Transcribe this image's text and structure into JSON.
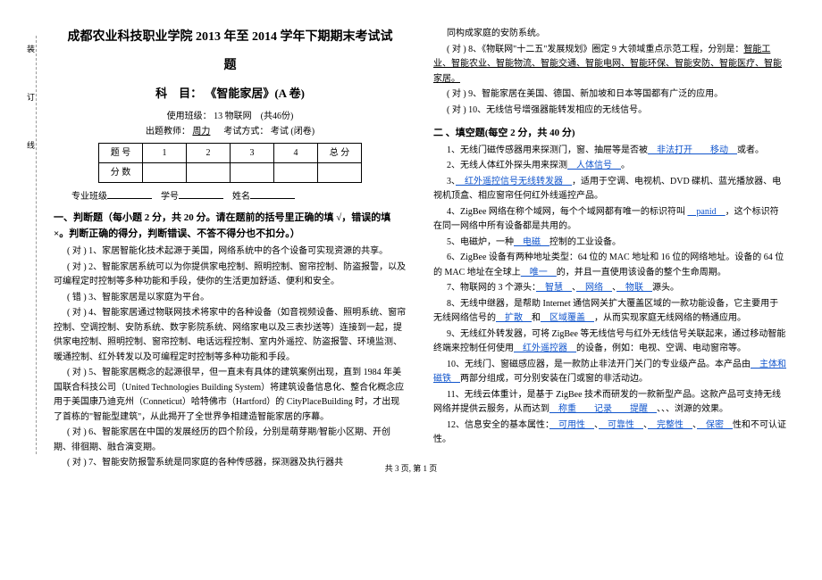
{
  "binding_label": "装　订　线",
  "header": {
    "title_line1": "成都农业科技职业学院 2013 年至 2014 学年下期期末考试试",
    "title_line2": "题",
    "subject_prefix": "科　目：",
    "subject": "《智能家居》(A 卷)",
    "class_label": "使用班级：",
    "class_value": "13 物联网",
    "points": "(共46份)",
    "teacher_label": "出题教师：",
    "teacher_value": "周力",
    "exam_type_label": "考试方式：",
    "exam_type_value": "考试 (闭卷)"
  },
  "score_table": {
    "row1": [
      "题 号",
      "1",
      "2",
      "3",
      "4",
      "总 分"
    ],
    "row2": [
      "分 数",
      "",
      "",
      "",
      "",
      ""
    ]
  },
  "info": {
    "class_label": "专业班级",
    "id_label": "学号",
    "name_label": "姓名"
  },
  "section1": {
    "header": "一、判断题（每小题 2 分，共 20 分。请在题前的括号里正确的填 √，错误的填 ×。判断正确的得分，判断错误、不答不得分也不扣分。）",
    "items": [
      {
        "mark": "( 对 )",
        "n": "1、",
        "text": "家居智能化技术起源于美国，网络系统中的各个设备可实现资源的共享。"
      },
      {
        "mark": "( 对 )",
        "n": "2、",
        "text": "智能家居系统可以为你提供家电控制、照明控制、窗帘控制、防盗报警，以及可编程定时控制等多种功能和手段，使你的生活更加舒适、便利和安全。"
      },
      {
        "mark": "( 错 )",
        "n": "3、",
        "text": "智能家居是以家庭为平台。"
      },
      {
        "mark": "( 对 )",
        "n": "4、",
        "text": "智能家居通过物联网技术将家中的各种设备（如音视频设备、照明系统、窗帘控制、空调控制、安防系统、数字影院系统、网络家电以及三表抄送等）连接到一起，提供家电控制、照明控制、窗帘控制、电话远程控制、室内外遥控、防盗报警、环境监测、暖通控制、红外转发以及可编程定时控制等多种功能和手段。"
      },
      {
        "mark": "( 对 )",
        "n": "5、",
        "text": "智能家居概念的起源很早，但一直未有具体的建筑案例出现，直到 1984 年美国联合科技公司（United Technologies Building System）将建筑设备信息化、整合化概念应用于美国康乃迪克州（Conneticut）哈特佛市（Hartford）的 CityPlaceBuilding 时，才出现了首栋的\"智能型建筑\"，从此揭开了全世界争相建造智能家居的序幕。"
      },
      {
        "mark": "( 对 )",
        "n": "6、",
        "text": "智能家居在中国的发展经历的四个阶段，分别是萌芽期/智能小区期、开创期、徘徊期、融合演变期。"
      },
      {
        "mark": "( 对 )",
        "n": "7、",
        "text": "智能安防报警系统是同家庭的各种传感器，探测器及执行器共"
      }
    ]
  },
  "section1_right": [
    {
      "mark": "",
      "text": "同构成家庭的安防系统。"
    },
    {
      "mark": "( 对 )",
      "n": "8、",
      "text": "《物联网\"十二五\"发展规划》圈定 9 大领域重点示范工程，分别是：",
      "u": "智能工业、智能农业、智能物流、智能交通、智能电网、智能环保、智能安防、智能医疗、智能家居。"
    },
    {
      "mark": "( 对 )",
      "n": "9、",
      "text": "智能家居在美国、德国、新加坡和日本等国都有广泛的应用。"
    },
    {
      "mark": "( 对 )",
      "n": "10、",
      "text": "无线信号增强器能转发相应的无线信号。"
    }
  ],
  "section2": {
    "header": "二 、填空题(每空 2 分，共 40 分)",
    "items": [
      {
        "n": "1、",
        "pre": "无线门磁传感器用来探测门，窗、抽屉等是否被",
        "a": "非法打开",
        "post": "或者",
        "a2": "移动",
        "post2": "。"
      },
      {
        "n": "2、",
        "pre": "无线人体红外探头用来探测",
        "a": "人体信号",
        "post": "。"
      },
      {
        "n": "3、",
        "a": "红外遥控信号无线转发器",
        "post": "，适用于空调、电视机、DVD 碟机、蓝光播放器、电视机顶盒、相应窗帘任何红外线遥控产品。"
      },
      {
        "n": "4、",
        "pre": "ZigBee 网络在称个域网，每个个域网都有唯一的标识符叫 ",
        "a": "panid",
        "post": "，这个标识符在同一网络中所有设备都是共用的。"
      },
      {
        "n": "5、",
        "pre": "电磁炉，一种",
        "a": "电磁",
        "post": "控制的工业设备。"
      },
      {
        "n": "6、",
        "pre": "ZigBee 设备有两种地址类型：64 位的 MAC 地址和 16 位的网络地址。设备的 64 位的 MAC 地址在全球上",
        "a": "唯一",
        "post": "的，并且一直使用该设备的整个生命周期。"
      },
      {
        "n": "7、",
        "pre": "物联网的 3 个源头：",
        "a": "智慧",
        "mid": "、",
        "a2": "网络",
        "mid2": "、",
        "a3": "物联",
        "post": "源头。"
      },
      {
        "n": "8、",
        "pre": "无线中继器，是帮助 Internet 通信网关扩大覆盖区域的一款功能设备，它主要用于无线网络信号的",
        "a": "扩散",
        "mid": "和",
        "a2": "区域覆盖",
        "post": "，从而实现家庭无线网络的畅通应用。"
      },
      {
        "n": "9、",
        "pre": "无线红外转发器，可将 ZigBee 等无线信号与红外无线信号关联起来，通过移动智能终端来控制任何使用",
        "a": "红外遥控器",
        "post": "的设备，例如：电视、空调、电动窗帘等。"
      },
      {
        "n": "10、",
        "pre": "无线门、窗磁感应器，是一款防止非法开门关门的专业级产品。本产品由",
        "a": "主体和磁铁",
        "post": "两部分组成，可分别安装在门或窗的非活动边。"
      },
      {
        "n": "11、",
        "pre": "无线云体重计，是基于 ZigBee 技术而研发的一款新型产品。这款产品可支持无线网络并提供云服务，从而达到",
        "a": "称重",
        "post": "、",
        "a2": "记录",
        "post2": "、",
        "a3": "提醒",
        "post3": "、浏源的效果。"
      },
      {
        "n": "12、",
        "pre": "信息安全的基本属性：",
        "a": "可用性",
        "mid": "、",
        "a2": "可靠性",
        "mid2": "、",
        "a3": "完整性",
        "post": "、",
        "a4": "保密",
        "post2": "性和不可认证性。"
      }
    ]
  },
  "footer": "共 3 页, 第 1 页"
}
